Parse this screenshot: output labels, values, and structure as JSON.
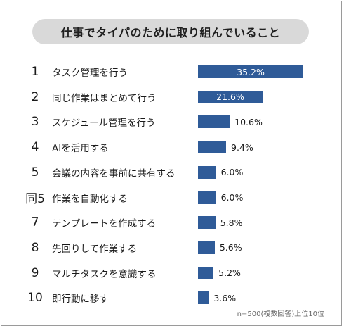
{
  "chart_data": {
    "type": "bar",
    "title": "仕事でタイパのために取り組んでいること",
    "orientation": "horizontal",
    "ranks": [
      "1",
      "2",
      "3",
      "4",
      "5",
      "同5",
      "7",
      "8",
      "9",
      "10"
    ],
    "categories": [
      "タスク管理を行う",
      "同じ作業はまとめて行う",
      "スケジュール管理を行う",
      "AIを活用する",
      "会議の内容を事前に共有する",
      "作業を自動化する",
      "テンプレートを作成する",
      "先回りして作業する",
      "マルチタスクを意識する",
      "即行動に移す"
    ],
    "values": [
      35.2,
      21.6,
      10.6,
      9.4,
      6.0,
      6.0,
      5.8,
      5.6,
      5.2,
      3.6
    ],
    "value_labels": [
      "35.2%",
      "21.6%",
      "10.6%",
      "9.4%",
      "6.0%",
      "6.0%",
      "5.8%",
      "5.6%",
      "5.2%",
      "3.6%"
    ],
    "bar_color": "#2f5b98",
    "xlabel": "",
    "ylabel": "",
    "grid": false
  },
  "footnote": "n=500(複数回答)上位10位"
}
